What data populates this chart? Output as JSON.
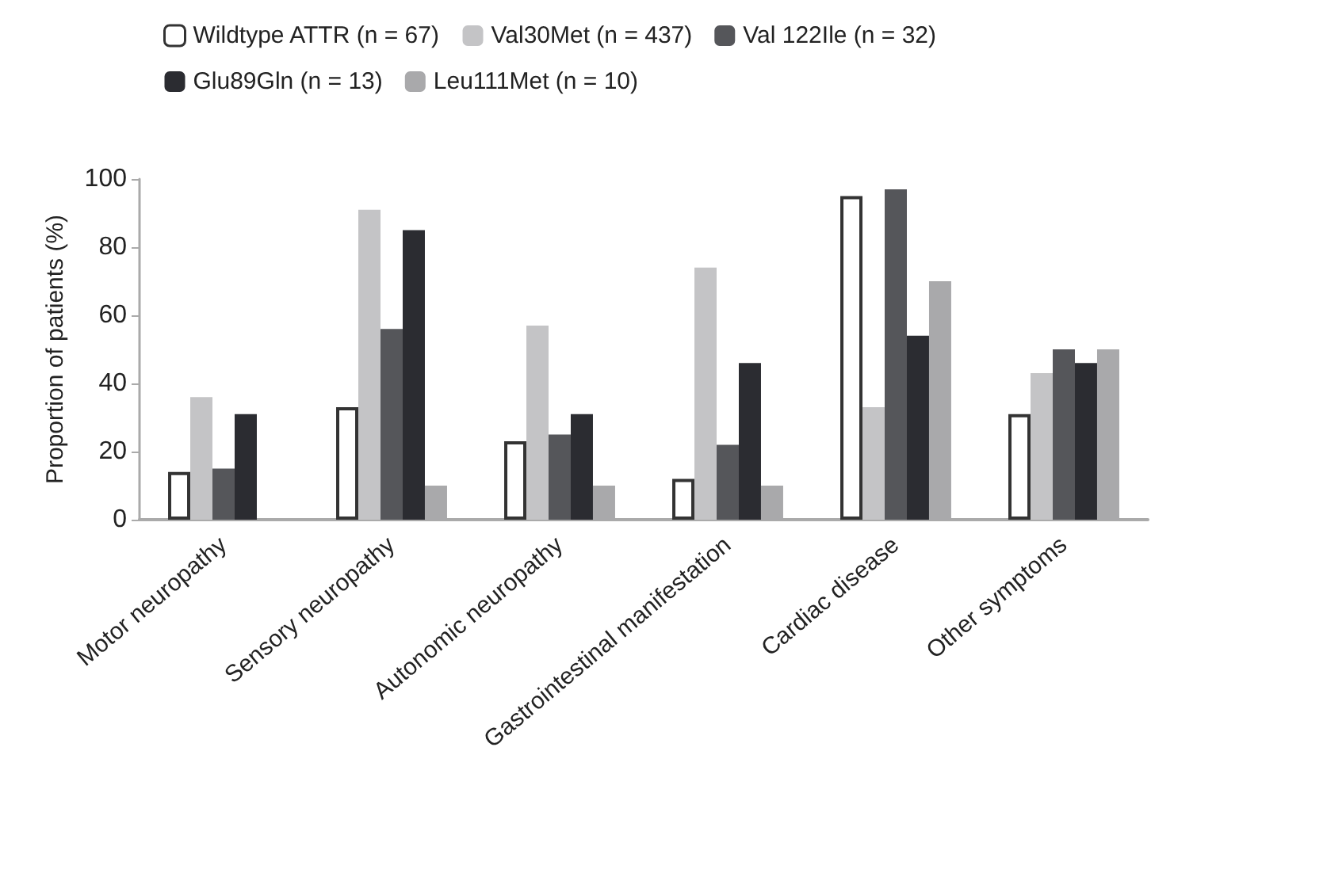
{
  "chart_data": {
    "type": "bar",
    "ylabel": "Proportion of patients (%)",
    "categories": [
      "Motor neuropathy",
      "Sensory neuropathy",
      "Autonomic neuropathy",
      "Gastrointestinal manifestation",
      "Cardiac disease",
      "Other symptoms"
    ],
    "series": [
      {
        "name": "Wildtype ATTR (n = 67)",
        "color": "#ffffff",
        "values": [
          14,
          33,
          23,
          12,
          95,
          31
        ]
      },
      {
        "name": "Val30Met (n = 437)",
        "color": "#c4c4c6",
        "values": [
          36,
          91,
          57,
          74,
          33,
          43
        ]
      },
      {
        "name": "Val 122Ile (n = 32)",
        "color": "#55565a",
        "values": [
          15,
          56,
          25,
          22,
          97,
          50
        ]
      },
      {
        "name": "Glu89Gln (n = 13)",
        "color": "#2b2c31",
        "values": [
          31,
          85,
          31,
          46,
          54,
          46
        ]
      },
      {
        "name": "Leu111Met (n = 10)",
        "color": "#a9a9ab",
        "values": [
          null,
          10,
          10,
          10,
          70,
          50
        ]
      }
    ],
    "ylim": [
      0,
      100
    ],
    "yticks": [
      0,
      20,
      40,
      60,
      80,
      100
    ],
    "grid": false,
    "legend": "top"
  }
}
